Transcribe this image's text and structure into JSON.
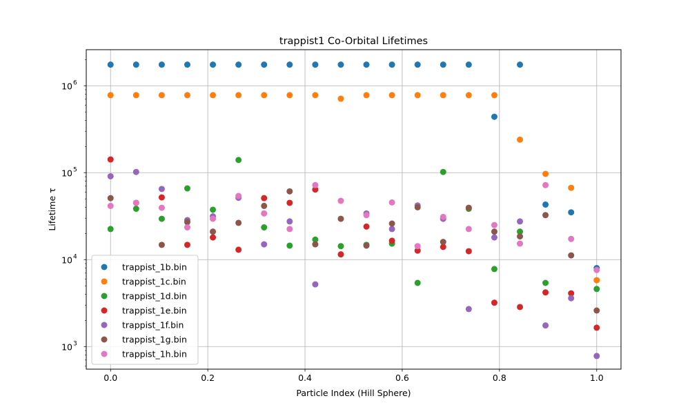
{
  "chart_data": {
    "type": "scatter",
    "title": "trappist1 Co-Orbital Lifetimes",
    "xlabel": "Particle Index (Hill Sphere)",
    "ylabel": "Lifetime τ",
    "xlim": [
      -0.05,
      1.05
    ],
    "ylim": [
      550,
      2600000
    ],
    "yscale": "log",
    "grid": true,
    "legend_position": "lower-left",
    "x_ticks": [
      "0.0",
      "0.2",
      "0.4",
      "0.6",
      "0.8",
      "1.0"
    ],
    "x_tick_values": [
      0,
      0.2,
      0.4,
      0.6,
      0.8,
      1.0
    ],
    "y_ticks": [
      "10",
      "10",
      "10",
      "10"
    ],
    "y_tick_exponents": [
      "3",
      "4",
      "5",
      "6"
    ],
    "y_tick_values": [
      1000,
      10000,
      100000,
      1000000
    ],
    "x": [
      0.0,
      0.0526,
      0.1053,
      0.1579,
      0.2105,
      0.2632,
      0.3158,
      0.3684,
      0.4211,
      0.4737,
      0.5263,
      0.5789,
      0.6316,
      0.6842,
      0.7368,
      0.7895,
      0.8421,
      0.8947,
      0.9474,
      1.0
    ],
    "series": [
      {
        "name": "trappist_1b.bin",
        "color": "#1f77b4",
        "values": [
          1750000,
          1750000,
          1750000,
          1750000,
          1750000,
          1750000,
          1750000,
          1750000,
          1750000,
          1750000,
          1750000,
          1750000,
          1750000,
          1750000,
          1750000,
          440000,
          1750000,
          43000,
          35000,
          8000
        ]
      },
      {
        "name": "trappist_1c.bin",
        "color": "#ff7f0e",
        "values": [
          780000,
          780000,
          780000,
          780000,
          780000,
          780000,
          780000,
          780000,
          780000,
          710000,
          780000,
          780000,
          780000,
          780000,
          780000,
          780000,
          240000,
          97000,
          67000,
          5800
        ]
      },
      {
        "name": "trappist_1d.bin",
        "color": "#2ca02c",
        "values": [
          22500,
          38500,
          29500,
          66000,
          37500,
          140000,
          23500,
          14500,
          17000,
          14300,
          14800,
          15300,
          5400,
          102000,
          38500,
          7800,
          21000,
          5400,
          null,
          4600
        ]
      },
      {
        "name": "trappist_1e.bin",
        "color": "#d62728",
        "values": [
          142000,
          null,
          52000,
          14800,
          18000,
          13000,
          51000,
          45000,
          64000,
          11500,
          24000,
          16500,
          12700,
          14000,
          12500,
          3200,
          2850,
          4200,
          4100,
          1650
        ]
      },
      {
        "name": "trappist_1f.bin",
        "color": "#9467bd",
        "values": [
          91000,
          102000,
          65000,
          28500,
          31500,
          51500,
          15000,
          27500,
          5200,
          null,
          34000,
          22500,
          42000,
          29500,
          2700,
          18000,
          27500,
          1750,
          3600,
          780
        ]
      },
      {
        "name": "trappist_1g.bin",
        "color": "#8c564b",
        "values": [
          51000,
          45000,
          14800,
          27000,
          21000,
          26500,
          41500,
          61000,
          15000,
          29500,
          14500,
          26000,
          40000,
          16000,
          39500,
          21000,
          18500,
          32500,
          11200,
          2600
        ]
      },
      {
        "name": "trappist_1h.bin",
        "color": "#e377c2",
        "values": [
          41500,
          45000,
          39500,
          23500,
          29500,
          54000,
          34000,
          22500,
          72000,
          47500,
          32500,
          45500,
          14300,
          31000,
          22500,
          25000,
          15300,
          72000,
          17300,
          7600
        ]
      }
    ]
  }
}
